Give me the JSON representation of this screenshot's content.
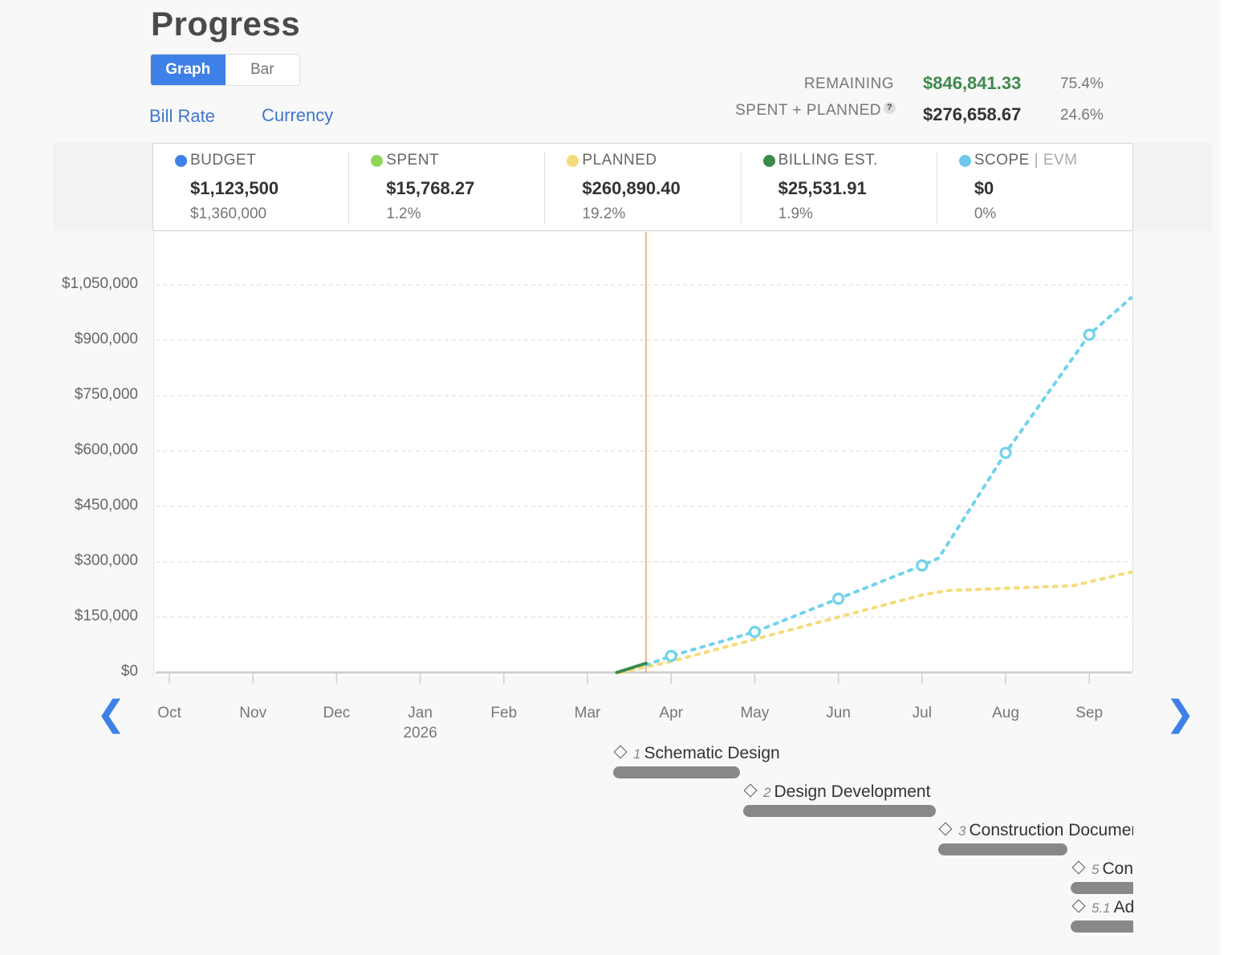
{
  "page": {
    "title": "Progress"
  },
  "view_toggle": {
    "graph_label": "Graph",
    "bar_label": "Bar"
  },
  "links": {
    "bill_rate": "Bill Rate",
    "currency": "Currency"
  },
  "summary": {
    "remaining_label": "REMAINING",
    "remaining_value": "$846,841.33",
    "remaining_pct": "75.4%",
    "spent_planned_label": "SPENT + PLANNED",
    "spent_planned_help": "?",
    "spent_planned_value": "$276,658.67",
    "spent_planned_pct": "24.6%"
  },
  "stats": [
    {
      "label": "BUDGET",
      "value": "$1,123,500",
      "sub": "$1,360,000",
      "color": "#3f80e8"
    },
    {
      "label": "SPENT",
      "value": "$15,768.27",
      "sub": "1.2%",
      "color": "#8fd65a"
    },
    {
      "label": "PLANNED",
      "value": "$260,890.40",
      "sub": "19.2%",
      "color": "#f5dc7a"
    },
    {
      "label": "BILLING EST.",
      "value": "$25,531.91",
      "sub": "1.9%",
      "color": "#3a8a4a"
    },
    {
      "label": "SCOPE",
      "label_extra": "| EVM",
      "value": "$0",
      "sub": "0%",
      "color": "#6fc8ea"
    }
  ],
  "nav": {
    "prev_icon": "chevron-left-icon",
    "next_icon": "chevron-right-icon",
    "prev_glyph": "❮",
    "next_glyph": "❯"
  },
  "chart_data": {
    "type": "line",
    "title": "",
    "xlabel": "",
    "ylabel": "",
    "ylim": [
      0,
      1050000
    ],
    "y_ticks": [
      "$0",
      "$150,000",
      "$300,000",
      "$450,000",
      "$600,000",
      "$750,000",
      "$900,000",
      "$1,050,000"
    ],
    "y_tick_values": [
      0,
      150000,
      300000,
      450000,
      600000,
      750000,
      900000,
      1050000
    ],
    "categories": [
      "Oct",
      "Nov",
      "Dec",
      "Jan",
      "Feb",
      "Mar",
      "Apr",
      "May",
      "Jun",
      "Jul",
      "Aug",
      "Sep"
    ],
    "year_label": {
      "month": "Jan",
      "text": "2026"
    },
    "today_month": 5.7,
    "series": [
      {
        "name": "Scope",
        "color": "#6fd3ea",
        "dashed": true,
        "markers": true,
        "points": [
          [
            5.7,
            20000
          ],
          [
            6.0,
            45000
          ],
          [
            7.0,
            110000
          ],
          [
            8.0,
            200000
          ],
          [
            9.0,
            290000
          ],
          [
            9.2,
            310000
          ],
          [
            10.0,
            595000
          ],
          [
            11.0,
            915000
          ],
          [
            11.5,
            1015000
          ]
        ]
      },
      {
        "name": "Planned",
        "color": "#f5dc7a",
        "dashed": true,
        "markers": false,
        "points": [
          [
            5.4,
            0
          ],
          [
            5.7,
            15000
          ],
          [
            6.0,
            30000
          ],
          [
            7.0,
            90000
          ],
          [
            8.0,
            150000
          ],
          [
            9.0,
            210000
          ],
          [
            9.3,
            222000
          ],
          [
            10.0,
            228000
          ],
          [
            10.8,
            235000
          ],
          [
            11.5,
            272000
          ]
        ]
      },
      {
        "name": "Billing Est.",
        "color": "#3a8a4a",
        "dashed": false,
        "markers": false,
        "points": [
          [
            5.35,
            0
          ],
          [
            5.7,
            25000
          ]
        ]
      }
    ]
  },
  "phases": [
    {
      "num": "1",
      "name": "Schematic Design"
    },
    {
      "num": "2",
      "name": "Design Development"
    },
    {
      "num": "3",
      "name": "Construction Documents"
    },
    {
      "num": "5",
      "name": "Construction Administration"
    },
    {
      "num": "5.1",
      "name": "Additional Services"
    }
  ]
}
